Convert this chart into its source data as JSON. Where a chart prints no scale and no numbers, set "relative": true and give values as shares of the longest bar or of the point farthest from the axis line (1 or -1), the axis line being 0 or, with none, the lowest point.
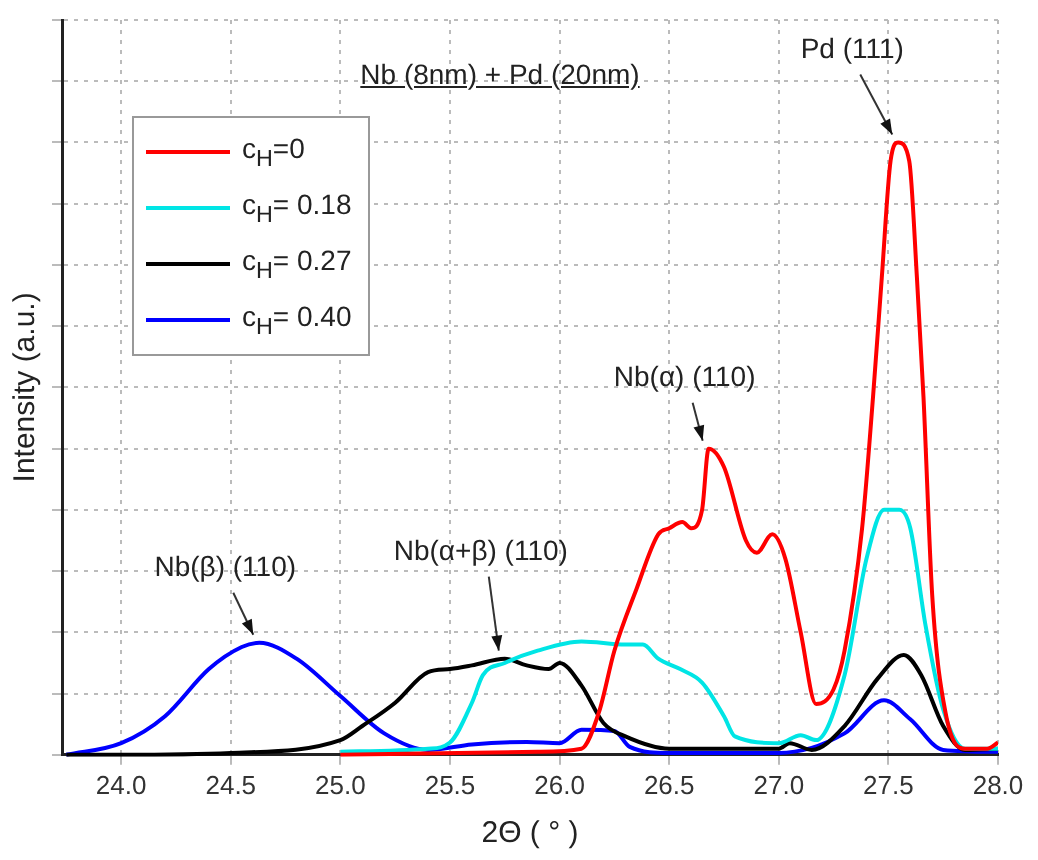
{
  "chart_data": {
    "type": "line",
    "title": "Nb (8nm) + Pd (20nm)",
    "xlabel": "2Θ ( ° )",
    "ylabel": "Intensity (a.u.)",
    "relative": true,
    "xlim": [
      23.73,
      28.0
    ],
    "xticks": [
      {
        "value": 24,
        "label": "24.0"
      },
      {
        "value": 24.5,
        "label": "24.5"
      },
      {
        "value": 25,
        "label": "25.0"
      },
      {
        "value": 25.5,
        "label": "25.5"
      },
      {
        "value": 26,
        "label": "26.0"
      },
      {
        "value": 26.5,
        "label": "26.5"
      },
      {
        "value": 27,
        "label": "27.0"
      },
      {
        "value": 27.5,
        "label": "27.5"
      },
      {
        "value": 28,
        "label": "28.0"
      }
    ],
    "grid": true,
    "legend": "top left",
    "marker": "none",
    "line_style": "solid",
    "series": [
      {
        "name": "c$_{H}$=0",
        "color": "#ff0000",
        "x": [
          25.0,
          25.9,
          26.1,
          26.18,
          26.25,
          26.35,
          26.45,
          26.5,
          26.56,
          26.6,
          26.65,
          26.68,
          26.75,
          26.85,
          26.9,
          26.97,
          27.03,
          27.1,
          27.17,
          27.25,
          27.3,
          27.38,
          27.43,
          27.47,
          27.51,
          27.545,
          27.595,
          27.63,
          27.66,
          27.7,
          27.76,
          27.85,
          27.95,
          28.0
        ],
        "values": [
          0,
          0.005,
          0.01,
          0.07,
          0.17,
          0.27,
          0.36,
          0.37,
          0.38,
          0.37,
          0.4,
          0.5,
          0.47,
          0.35,
          0.33,
          0.36,
          0.32,
          0.2,
          0.083,
          0.107,
          0.17,
          0.37,
          0.585,
          0.78,
          0.97,
          1,
          0.97,
          0.78,
          0.585,
          0.26,
          0.07,
          0.01,
          0.01,
          0.02
        ]
      },
      {
        "name": "c$_{H}$= 0.18",
        "color": "#00e5e5",
        "x": [
          25.0,
          25.4,
          25.5,
          25.6,
          25.65,
          25.75,
          25.9,
          26.1,
          26.3,
          26.38,
          26.45,
          26.55,
          26.65,
          26.75,
          26.8,
          27.0,
          27.1,
          27.17,
          27.3,
          27.4,
          27.48,
          27.55,
          27.6,
          27.67,
          27.75,
          27.85,
          28.0
        ],
        "values": [
          0.005,
          0.01,
          0.02,
          0.085,
          0.13,
          0.15,
          0.17,
          0.185,
          0.18,
          0.18,
          0.157,
          0.14,
          0.118,
          0.063,
          0.03,
          0.019,
          0.032,
          0.024,
          0.13,
          0.32,
          0.4,
          0.4,
          0.37,
          0.21,
          0.074,
          0.01,
          0.01
        ]
      },
      {
        "name": "c$_{H}$= 0.27",
        "color": "#000000",
        "x": [
          23.75,
          24.0,
          24.5,
          25.0,
          25.1,
          25.25,
          25.4,
          25.5,
          25.6,
          25.75,
          25.85,
          25.95,
          26.0,
          26.1,
          26.2,
          26.3,
          26.5,
          27.0,
          27.05,
          27.15,
          27.3,
          27.45,
          27.57,
          27.65,
          27.75,
          27.85,
          28.0
        ],
        "values": [
          0,
          0,
          0.003,
          0.024,
          0.047,
          0.085,
          0.135,
          0.14,
          0.146,
          0.157,
          0.146,
          0.14,
          0.15,
          0.113,
          0.052,
          0.03,
          0.01,
          0.01,
          0.019,
          0.008,
          0.047,
          0.124,
          0.163,
          0.13,
          0.047,
          0.008,
          0.01
        ]
      },
      {
        "name": "c$_{H}$= 0.40",
        "color": "#0000ff",
        "x": [
          23.75,
          24.0,
          24.2,
          24.4,
          24.55,
          24.63,
          24.8,
          25.0,
          25.2,
          25.4,
          25.6,
          25.85,
          26.0,
          26.1,
          26.25,
          26.32,
          26.5,
          27.0,
          27.3,
          27.48,
          27.6,
          27.75,
          28.0
        ],
        "values": [
          0,
          0.019,
          0.063,
          0.14,
          0.176,
          0.183,
          0.157,
          0.096,
          0.035,
          0.008,
          0.017,
          0.021,
          0.019,
          0.041,
          0.039,
          0.013,
          0.003,
          0.003,
          0.035,
          0.089,
          0.058,
          0.008,
          0.005
        ]
      }
    ],
    "annotations": [
      {
        "text": "Pd (111)",
        "x": 27.545,
        "y": 1
      },
      {
        "text": "Nb(α) (110)",
        "x": 26.68,
        "y": 0.5
      },
      {
        "text": "Nb(α+β) (110)",
        "x": 25.75,
        "y": 0.157
      },
      {
        "text": "Nb(β) (110)",
        "x": 24.63,
        "y": 0.183
      }
    ]
  }
}
